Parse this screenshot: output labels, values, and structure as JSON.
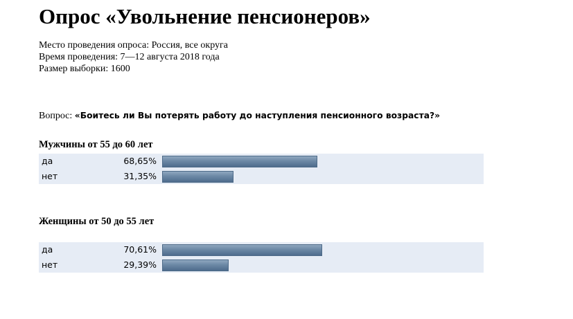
{
  "title": "Опрос «Увольнение пенсионеров»",
  "meta": {
    "place": "Место проведения опроса: Россия, все округа",
    "time": "Время проведения: 7—12 августа 2018 года",
    "sample": "Размер выборки: 1600"
  },
  "question": {
    "label": "Вопрос:",
    "text": "«Боитесь ли Вы потерять работу до наступления пенсионного возраста?»"
  },
  "bar_color": "#6c88a5",
  "panel_color": "#e6ecf5",
  "chart_data": [
    {
      "type": "bar",
      "title": "Мужчины от 55 до 60 лет",
      "categories": [
        "да",
        "нет"
      ],
      "values": [
        68.65,
        31.35
      ],
      "labels": [
        "68,65%",
        "31,35%"
      ],
      "xlim": [
        0,
        100
      ]
    },
    {
      "type": "bar",
      "title": "Женщины от 50 до 55 лет",
      "categories": [
        "да",
        "нет"
      ],
      "values": [
        70.61,
        29.39
      ],
      "labels": [
        "70,61%",
        "29,39%"
      ],
      "xlim": [
        0,
        100
      ]
    }
  ]
}
